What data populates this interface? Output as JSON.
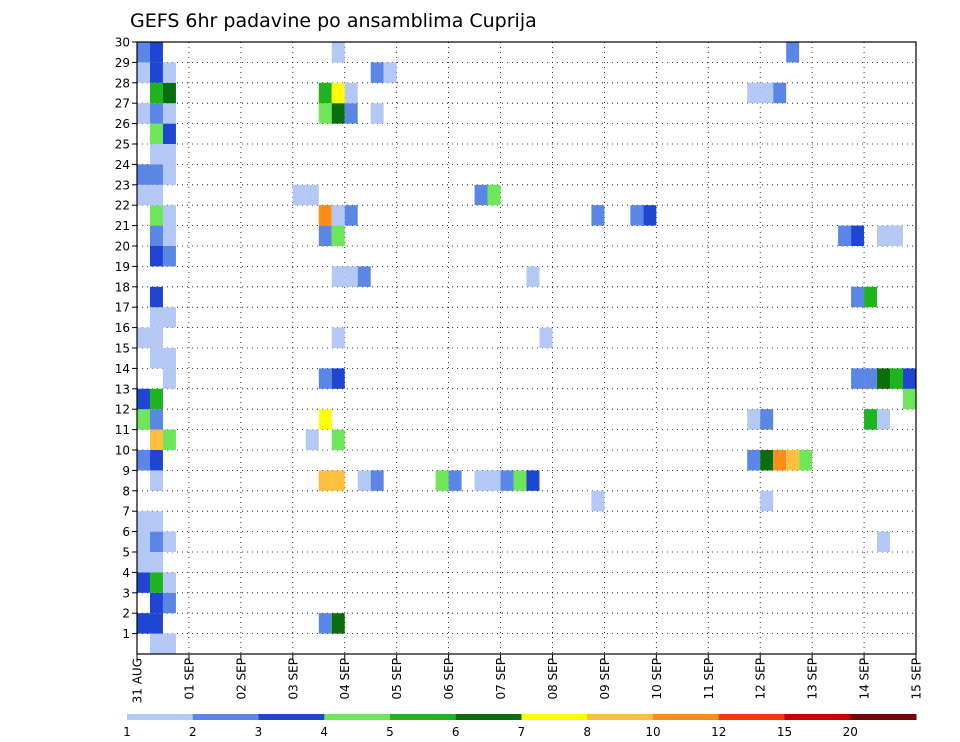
{
  "chart_data": {
    "type": "heatmap",
    "title": "GEFS 6hr padavine po ansamblima Cuprija",
    "xlabel": "",
    "ylabel": "",
    "grid": true,
    "x_tick_labels": [
      "31 AUG",
      "01 SEP",
      "02 SEP",
      "03 SEP",
      "04 SEP",
      "05 SEP",
      "06 SEP",
      "07 SEP",
      "08 SEP",
      "09 SEP",
      "10 SEP",
      "11 SEP",
      "12 SEP",
      "13 SEP",
      "14 SEP",
      "15 SEP"
    ],
    "x_range_days": [
      0,
      15
    ],
    "time_step_hours": 6,
    "y_tick_labels": [
      "1",
      "2",
      "3",
      "4",
      "5",
      "6",
      "7",
      "8",
      "9",
      "10",
      "11",
      "12",
      "13",
      "14",
      "15",
      "16",
      "17",
      "18",
      "19",
      "20",
      "21",
      "22",
      "23",
      "24",
      "25",
      "26",
      "27",
      "28",
      "29",
      "30"
    ],
    "y_range_members": [
      0,
      30
    ],
    "colorbar": {
      "labels": [
        "1",
        "2",
        "3",
        "4",
        "5",
        "6",
        "7",
        "8",
        "10",
        "12",
        "15",
        "20"
      ],
      "bins": [
        {
          "from": 1,
          "to": 2,
          "color": "#b4c8f5"
        },
        {
          "from": 2,
          "to": 3,
          "color": "#5a87e6"
        },
        {
          "from": 3,
          "to": 4,
          "color": "#1e46d2"
        },
        {
          "from": 4,
          "to": 5,
          "color": "#6ee65a"
        },
        {
          "from": 5,
          "to": 6,
          "color": "#1eb41e"
        },
        {
          "from": 6,
          "to": 7,
          "color": "#0a6e0a"
        },
        {
          "from": 7,
          "to": 8,
          "color": "#ffff00"
        },
        {
          "from": 8,
          "to": 10,
          "color": "#ffbe3c"
        },
        {
          "from": 10,
          "to": 12,
          "color": "#ff8c14"
        },
        {
          "from": 12,
          "to": 15,
          "color": "#eb3c0a"
        },
        {
          "from": 15,
          "to": 20,
          "color": "#c80000"
        },
        {
          "from": 20,
          "to": 30,
          "color": "#780000"
        }
      ]
    },
    "series_note": "cells: [day_offset_from_31_AUG_00z, member, precip_mm_per_6h]",
    "cells": [
      [
        0.25,
        0,
        1.5
      ],
      [
        0.5,
        0,
        1.5
      ],
      [
        0,
        1,
        3.5
      ],
      [
        0.25,
        1,
        3.5
      ],
      [
        3.5,
        1,
        2.5
      ],
      [
        3.75,
        1,
        6.5
      ],
      [
        0.25,
        2,
        3.5
      ],
      [
        0.5,
        2,
        2.5
      ],
      [
        0,
        3,
        3.5
      ],
      [
        0.25,
        3,
        5.5
      ],
      [
        0.5,
        3,
        1.5
      ],
      [
        0,
        4,
        1.5
      ],
      [
        0.25,
        4,
        1.5
      ],
      [
        0,
        5,
        1.5
      ],
      [
        0.25,
        5,
        2.5
      ],
      [
        0.5,
        5,
        1.5
      ],
      [
        14.25,
        5,
        1.5
      ],
      [
        0,
        6,
        1.5
      ],
      [
        0.25,
        6,
        1.5
      ],
      [
        8.75,
        7,
        1.5
      ],
      [
        12,
        7,
        1.5
      ],
      [
        0.25,
        8,
        1.5
      ],
      [
        3.5,
        8,
        9
      ],
      [
        3.75,
        8,
        9
      ],
      [
        4.25,
        8,
        1.5
      ],
      [
        4.5,
        8,
        2.5
      ],
      [
        5.75,
        8,
        4.5
      ],
      [
        6,
        8,
        2.5
      ],
      [
        6.5,
        8,
        1.5
      ],
      [
        6.75,
        8,
        1.5
      ],
      [
        7,
        8,
        2.5
      ],
      [
        7.25,
        8,
        4.5
      ],
      [
        7.5,
        8,
        3.5
      ],
      [
        0,
        9,
        2.5
      ],
      [
        0.25,
        9,
        3.5
      ],
      [
        11.75,
        9,
        2.5
      ],
      [
        12,
        9,
        6.5
      ],
      [
        12.25,
        9,
        11
      ],
      [
        12.5,
        9,
        9
      ],
      [
        12.75,
        9,
        4.5
      ],
      [
        0.25,
        10,
        9
      ],
      [
        0.5,
        10,
        4.5
      ],
      [
        3.25,
        10,
        1.5
      ],
      [
        3.75,
        10,
        4.5
      ],
      [
        0,
        11,
        4.5
      ],
      [
        0.25,
        11,
        2.5
      ],
      [
        3.5,
        11,
        7.5
      ],
      [
        11.75,
        11,
        1.5
      ],
      [
        12,
        11,
        2.5
      ],
      [
        14,
        11,
        5.5
      ],
      [
        14.25,
        11,
        1.5
      ],
      [
        0,
        12,
        3.5
      ],
      [
        0.25,
        12,
        5.5
      ],
      [
        14.75,
        12,
        4.5
      ],
      [
        0.5,
        13,
        1.5
      ],
      [
        3.5,
        13,
        2.5
      ],
      [
        3.75,
        13,
        3.5
      ],
      [
        13.75,
        13,
        2.5
      ],
      [
        14,
        13,
        2.5
      ],
      [
        14.25,
        13,
        6.5
      ],
      [
        14.5,
        13,
        5.5
      ],
      [
        14.75,
        13,
        3.5
      ],
      [
        0.25,
        14,
        1.5
      ],
      [
        0.5,
        14,
        1.5
      ],
      [
        0,
        15,
        1.5
      ],
      [
        0.25,
        15,
        1.5
      ],
      [
        3.75,
        15,
        1.5
      ],
      [
        7.75,
        15,
        1.5
      ],
      [
        0.25,
        16,
        1.5
      ],
      [
        0.5,
        16,
        1.5
      ],
      [
        0.25,
        17,
        3.5
      ],
      [
        13.75,
        17,
        2.5
      ],
      [
        14,
        17,
        5.5
      ],
      [
        3.75,
        18,
        1.5
      ],
      [
        4,
        18,
        1.5
      ],
      [
        4.25,
        18,
        2.5
      ],
      [
        7.5,
        18,
        1.5
      ],
      [
        0.25,
        19,
        3.5
      ],
      [
        0.5,
        19,
        2.5
      ],
      [
        0.25,
        20,
        2.5
      ],
      [
        0.5,
        20,
        1.5
      ],
      [
        3.5,
        20,
        2.5
      ],
      [
        3.75,
        20,
        4.5
      ],
      [
        13.5,
        20,
        2.5
      ],
      [
        13.75,
        20,
        3.5
      ],
      [
        14.25,
        20,
        1.5
      ],
      [
        14.5,
        20,
        1.5
      ],
      [
        0.25,
        21,
        4.5
      ],
      [
        0.5,
        21,
        1.5
      ],
      [
        3.5,
        21,
        11
      ],
      [
        3.75,
        21,
        1.5
      ],
      [
        4,
        21,
        2.5
      ],
      [
        8.75,
        21,
        2.5
      ],
      [
        9.5,
        21,
        2.5
      ],
      [
        9.75,
        21,
        3.5
      ],
      [
        0,
        22,
        1.5
      ],
      [
        0.25,
        22,
        1.5
      ],
      [
        3,
        22,
        1.5
      ],
      [
        3.25,
        22,
        1.5
      ],
      [
        6.5,
        22,
        2.5
      ],
      [
        6.75,
        22,
        4.5
      ],
      [
        0,
        23,
        2.5
      ],
      [
        0.25,
        23,
        2.5
      ],
      [
        0.5,
        23,
        1.5
      ],
      [
        0.25,
        24,
        1.5
      ],
      [
        0.5,
        24,
        1.5
      ],
      [
        0.25,
        25,
        4.5
      ],
      [
        0.5,
        25,
        3.5
      ],
      [
        0,
        26,
        1.5
      ],
      [
        0.25,
        26,
        2.5
      ],
      [
        0.5,
        26,
        1.5
      ],
      [
        3.5,
        26,
        4.5
      ],
      [
        3.75,
        26,
        6.5
      ],
      [
        4,
        26,
        2.5
      ],
      [
        4.5,
        26,
        1.5
      ],
      [
        0.25,
        27,
        5.5
      ],
      [
        0.5,
        27,
        6.5
      ],
      [
        3.5,
        27,
        5.5
      ],
      [
        3.75,
        27,
        7.5
      ],
      [
        4,
        27,
        1.5
      ],
      [
        11.75,
        27,
        1.5
      ],
      [
        12,
        27,
        1.5
      ],
      [
        12.25,
        27,
        2.5
      ],
      [
        0,
        28,
        1.5
      ],
      [
        0.25,
        28,
        3.5
      ],
      [
        0.5,
        28,
        1.5
      ],
      [
        4.5,
        28,
        2.5
      ],
      [
        4.75,
        28,
        1.5
      ],
      [
        0,
        29,
        2.5
      ],
      [
        0.25,
        29,
        3.5
      ],
      [
        3.75,
        29,
        1.5
      ],
      [
        12.5,
        29,
        2.5
      ]
    ]
  }
}
